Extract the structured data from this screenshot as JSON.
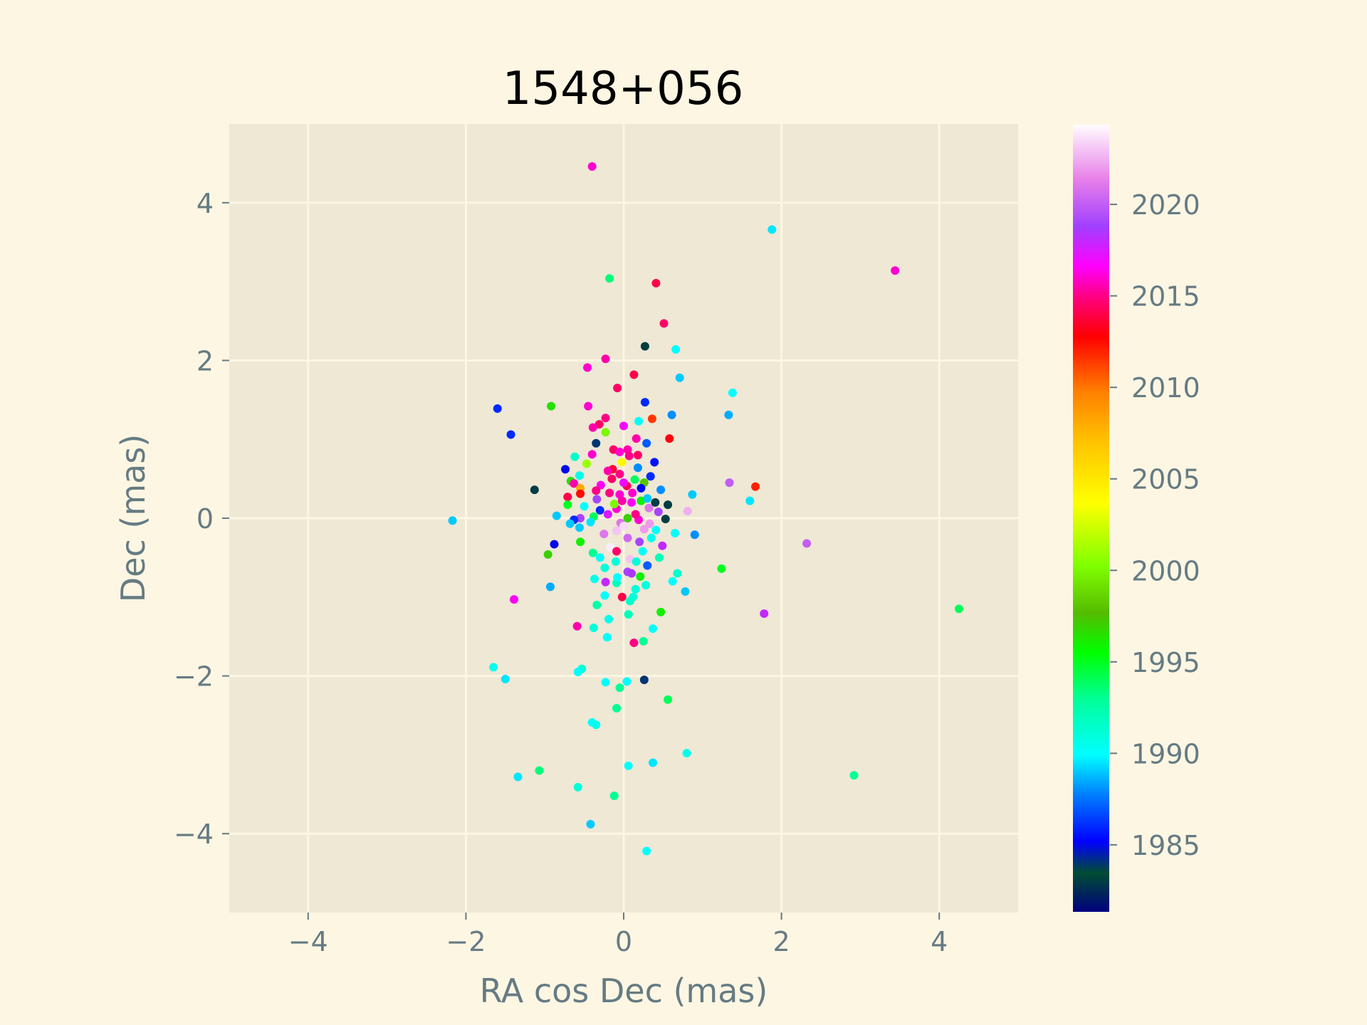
{
  "chart_data": {
    "type": "scatter",
    "title": "1548+056",
    "xlabel": "RA cos Dec (mas)",
    "ylabel": "Dec (mas)",
    "xlim": [
      -5,
      5
    ],
    "ylim": [
      -5,
      5
    ],
    "xticks": [
      -4,
      -2,
      0,
      2,
      4
    ],
    "yticks": [
      -4,
      -2,
      0,
      2,
      4
    ],
    "xtick_labels": [
      "−4",
      "−2",
      "0",
      "2",
      "4"
    ],
    "ytick_labels": [
      "−4",
      "−2",
      "0",
      "2",
      "4"
    ],
    "grid": true,
    "colormap": "gist_ncar",
    "colorbar": {
      "range": [
        1981.3,
        2024.4
      ],
      "ticks": [
        1985,
        1990,
        1995,
        2000,
        2005,
        2010,
        2015,
        2020
      ],
      "tick_labels": [
        "1985",
        "1990",
        "1995",
        "2000",
        "2005",
        "2010",
        "2015",
        "2020"
      ]
    },
    "colors": {
      "figure_bg": "#fdf6e3",
      "axes_bg": "#eee8d5",
      "grid": "#fdf6e3",
      "tick_text": "#657b83"
    },
    "points": [
      {
        "x": -0.4,
        "y": 4.46,
        "t": 2016
      },
      {
        "x": 1.88,
        "y": 3.66,
        "t": 1989.5
      },
      {
        "x": 3.44,
        "y": 3.14,
        "t": 2016
      },
      {
        "x": -0.18,
        "y": 3.04,
        "t": 1993.5
      },
      {
        "x": 0.41,
        "y": 2.98,
        "t": 2014
      },
      {
        "x": 0.51,
        "y": 2.47,
        "t": 2014.5
      },
      {
        "x": 0.27,
        "y": 2.18,
        "t": 1983
      },
      {
        "x": 0.66,
        "y": 2.14,
        "t": 1990
      },
      {
        "x": -0.23,
        "y": 2.02,
        "t": 2015.5
      },
      {
        "x": -0.46,
        "y": 1.91,
        "t": 2016
      },
      {
        "x": 0.13,
        "y": 1.82,
        "t": 2014
      },
      {
        "x": 0.71,
        "y": 1.78,
        "t": 1989
      },
      {
        "x": -0.08,
        "y": 1.65,
        "t": 2014.5
      },
      {
        "x": 1.38,
        "y": 1.59,
        "t": 1990
      },
      {
        "x": 0.27,
        "y": 1.47,
        "t": 1986
      },
      {
        "x": -0.92,
        "y": 1.42,
        "t": 1996.5
      },
      {
        "x": -0.45,
        "y": 1.42,
        "t": 2016
      },
      {
        "x": -1.6,
        "y": 1.39,
        "t": 1986
      },
      {
        "x": 0.61,
        "y": 1.31,
        "t": 1988
      },
      {
        "x": 1.33,
        "y": 1.31,
        "t": 1988.5
      },
      {
        "x": -0.23,
        "y": 1.27,
        "t": 2015
      },
      {
        "x": 0.36,
        "y": 1.26,
        "t": 2011.5
      },
      {
        "x": 0.19,
        "y": 1.23,
        "t": 1990
      },
      {
        "x": -0.31,
        "y": 1.19,
        "t": 2014.5
      },
      {
        "x": -0.39,
        "y": 1.15,
        "t": 2015.5
      },
      {
        "x": 0.0,
        "y": 1.17,
        "t": 2017
      },
      {
        "x": -0.23,
        "y": 1.09,
        "t": 2000
      },
      {
        "x": -1.43,
        "y": 1.06,
        "t": 1986
      },
      {
        "x": 0.58,
        "y": 1.01,
        "t": 2013
      },
      {
        "x": 0.16,
        "y": 1.01,
        "t": 2015.5
      },
      {
        "x": -0.35,
        "y": 0.95,
        "t": 1984
      },
      {
        "x": 0.29,
        "y": 0.95,
        "t": 1987
      },
      {
        "x": -0.13,
        "y": 0.87,
        "t": 2014.5
      },
      {
        "x": 0.05,
        "y": 0.87,
        "t": 2015.5
      },
      {
        "x": -0.05,
        "y": 0.84,
        "t": 2016
      },
      {
        "x": -0.4,
        "y": 0.81,
        "t": 2016
      },
      {
        "x": 0.07,
        "y": 0.79,
        "t": 2015
      },
      {
        "x": -0.62,
        "y": 0.78,
        "t": 1991.5
      },
      {
        "x": 0.39,
        "y": 0.71,
        "t": 1985.5
      },
      {
        "x": -0.02,
        "y": 0.71,
        "t": 2004
      },
      {
        "x": -0.47,
        "y": 0.69,
        "t": 2001
      },
      {
        "x": 0.18,
        "y": 0.64,
        "t": 1988
      },
      {
        "x": -0.14,
        "y": 0.62,
        "t": 2013.5
      },
      {
        "x": -0.74,
        "y": 0.62,
        "t": 1985
      },
      {
        "x": -0.05,
        "y": 0.56,
        "t": 2015
      },
      {
        "x": 0.34,
        "y": 0.53,
        "t": 1986
      },
      {
        "x": -0.56,
        "y": 0.54,
        "t": 1990.5
      },
      {
        "x": 0.14,
        "y": 0.49,
        "t": 1994
      },
      {
        "x": -0.67,
        "y": 0.47,
        "t": 1996.5
      },
      {
        "x": 0.26,
        "y": 0.45,
        "t": 1998
      },
      {
        "x": -0.63,
        "y": 0.44,
        "t": 2015.5
      },
      {
        "x": 1.34,
        "y": 0.45,
        "t": 2020
      },
      {
        "x": -0.29,
        "y": 0.42,
        "t": 2016.5
      },
      {
        "x": 0.04,
        "y": 0.41,
        "t": 2014
      },
      {
        "x": -0.55,
        "y": 0.38,
        "t": 2008
      },
      {
        "x": 1.67,
        "y": 0.4,
        "t": 2012
      },
      {
        "x": -1.13,
        "y": 0.36,
        "t": 1983
      },
      {
        "x": 0.47,
        "y": 0.36,
        "t": 1988
      },
      {
        "x": -0.18,
        "y": 0.32,
        "t": 2015
      },
      {
        "x": 0.11,
        "y": 0.32,
        "t": 2016
      },
      {
        "x": -0.55,
        "y": 0.31,
        "t": 2012.5
      },
      {
        "x": -0.71,
        "y": 0.27,
        "t": 2014
      },
      {
        "x": 0.87,
        "y": 0.3,
        "t": 1989
      },
      {
        "x": -0.34,
        "y": 0.24,
        "t": 2019
      },
      {
        "x": 0.22,
        "y": 0.22,
        "t": 1996
      },
      {
        "x": -0.02,
        "y": 0.22,
        "t": 2015.5
      },
      {
        "x": 1.6,
        "y": 0.22,
        "t": 1989.5
      },
      {
        "x": -0.71,
        "y": 0.17,
        "t": 1995
      },
      {
        "x": 0.56,
        "y": 0.17,
        "t": 1983
      },
      {
        "x": -0.5,
        "y": 0.15,
        "t": 1990
      },
      {
        "x": 0.32,
        "y": 0.13,
        "t": 2021
      },
      {
        "x": -0.09,
        "y": 0.12,
        "t": 2016
      },
      {
        "x": 0.81,
        "y": 0.09,
        "t": 2022.5
      },
      {
        "x": 0.44,
        "y": 0.08,
        "t": 2019
      },
      {
        "x": -0.85,
        "y": 0.03,
        "t": 1989
      },
      {
        "x": -0.38,
        "y": 0.02,
        "t": 1994
      },
      {
        "x": 0.53,
        "y": -0.01,
        "t": 1983
      },
      {
        "x": -0.55,
        "y": 0.0,
        "t": 2019
      },
      {
        "x": -0.63,
        "y": -0.02,
        "t": 1986
      },
      {
        "x": 0.19,
        "y": -0.02,
        "t": 2016
      },
      {
        "x": -2.17,
        "y": -0.03,
        "t": 1989
      },
      {
        "x": -0.68,
        "y": -0.07,
        "t": 1989
      },
      {
        "x": -0.04,
        "y": -0.06,
        "t": 2021
      },
      {
        "x": 0.33,
        "y": -0.07,
        "t": 2022
      },
      {
        "x": -0.56,
        "y": -0.12,
        "t": 1989
      },
      {
        "x": 0.26,
        "y": -0.14,
        "t": 2022
      },
      {
        "x": -0.09,
        "y": -0.16,
        "t": 2023
      },
      {
        "x": 0.41,
        "y": -0.15,
        "t": 1990
      },
      {
        "x": 0.9,
        "y": -0.21,
        "t": 1988
      },
      {
        "x": 0.65,
        "y": -0.19,
        "t": 1990
      },
      {
        "x": 2.32,
        "y": -0.32,
        "t": 2020
      },
      {
        "x": 0.49,
        "y": -0.35,
        "t": 2018
      },
      {
        "x": -0.88,
        "y": -0.33,
        "t": 1985
      },
      {
        "x": -0.17,
        "y": -0.37,
        "t": 2024
      },
      {
        "x": -0.09,
        "y": -0.42,
        "t": 2014.5
      },
      {
        "x": 0.24,
        "y": -0.42,
        "t": 1990
      },
      {
        "x": -0.96,
        "y": -0.46,
        "t": 1997
      },
      {
        "x": -0.39,
        "y": -0.44,
        "t": 1993
      },
      {
        "x": 0.08,
        "y": -0.52,
        "t": 2023
      },
      {
        "x": 0.16,
        "y": -0.55,
        "t": 1991
      },
      {
        "x": 0.3,
        "y": -0.6,
        "t": 1987
      },
      {
        "x": -0.24,
        "y": -0.63,
        "t": 1991
      },
      {
        "x": 0.05,
        "y": -0.68,
        "t": 2019
      },
      {
        "x": 1.24,
        "y": -0.64,
        "t": 1995
      },
      {
        "x": 0.68,
        "y": -0.7,
        "t": 1991.5
      },
      {
        "x": -0.37,
        "y": -0.77,
        "t": 1990.5
      },
      {
        "x": 0.21,
        "y": -0.74,
        "t": 1996
      },
      {
        "x": -0.09,
        "y": -0.82,
        "t": 1992
      },
      {
        "x": -0.23,
        "y": -0.81,
        "t": 2018
      },
      {
        "x": -0.93,
        "y": -0.87,
        "t": 1988.5
      },
      {
        "x": 0.62,
        "y": -0.8,
        "t": 1990
      },
      {
        "x": 0.15,
        "y": -0.9,
        "t": 1991
      },
      {
        "x": 0.78,
        "y": -0.93,
        "t": 1989
      },
      {
        "x": -0.24,
        "y": -0.98,
        "t": 1990
      },
      {
        "x": -0.02,
        "y": -1.0,
        "t": 2014
      },
      {
        "x": 0.12,
        "y": -1.0,
        "t": 1991
      },
      {
        "x": -1.39,
        "y": -1.03,
        "t": 2016.5
      },
      {
        "x": -0.34,
        "y": -1.1,
        "t": 1992.5
      },
      {
        "x": 0.47,
        "y": -1.19,
        "t": 1996
      },
      {
        "x": 1.78,
        "y": -1.21,
        "t": 2018
      },
      {
        "x": 4.25,
        "y": -1.15,
        "t": 1994
      },
      {
        "x": 0.06,
        "y": -1.22,
        "t": 1992
      },
      {
        "x": -0.19,
        "y": -1.28,
        "t": 1990.5
      },
      {
        "x": -0.38,
        "y": -1.39,
        "t": 1991
      },
      {
        "x": -0.59,
        "y": -1.37,
        "t": 2015.5
      },
      {
        "x": 0.37,
        "y": -1.4,
        "t": 1990
      },
      {
        "x": -0.21,
        "y": -1.51,
        "t": 1990
      },
      {
        "x": 0.13,
        "y": -1.58,
        "t": 2015
      },
      {
        "x": 0.25,
        "y": -1.56,
        "t": 1993
      },
      {
        "x": -1.65,
        "y": -1.89,
        "t": 1990.5
      },
      {
        "x": -0.53,
        "y": -1.91,
        "t": 1991
      },
      {
        "x": -0.58,
        "y": -1.95,
        "t": 1990
      },
      {
        "x": -1.5,
        "y": -2.04,
        "t": 1989.5
      },
      {
        "x": 0.26,
        "y": -2.05,
        "t": 1984
      },
      {
        "x": 0.04,
        "y": -2.07,
        "t": 1990
      },
      {
        "x": -0.23,
        "y": -2.08,
        "t": 1990
      },
      {
        "x": -0.05,
        "y": -2.15,
        "t": 1993
      },
      {
        "x": 0.56,
        "y": -2.3,
        "t": 1994
      },
      {
        "x": -0.09,
        "y": -2.41,
        "t": 1993
      },
      {
        "x": -0.4,
        "y": -2.59,
        "t": 1990
      },
      {
        "x": -0.35,
        "y": -2.62,
        "t": 1990.5
      },
      {
        "x": 0.8,
        "y": -2.98,
        "t": 1990.5
      },
      {
        "x": 0.37,
        "y": -3.1,
        "t": 1989.5
      },
      {
        "x": 0.06,
        "y": -3.14,
        "t": 1990
      },
      {
        "x": -1.07,
        "y": -3.2,
        "t": 1993.5
      },
      {
        "x": 2.92,
        "y": -3.26,
        "t": 1993
      },
      {
        "x": -1.34,
        "y": -3.28,
        "t": 1989.5
      },
      {
        "x": -0.58,
        "y": -3.41,
        "t": 1991
      },
      {
        "x": -0.12,
        "y": -3.52,
        "t": 1993
      },
      {
        "x": -0.42,
        "y": -3.88,
        "t": 1989
      },
      {
        "x": 0.29,
        "y": -4.22,
        "t": 1990
      },
      {
        "x": 0.0,
        "y": 0.45,
        "t": 2017
      },
      {
        "x": 0.1,
        "y": 0.2,
        "t": 2016.5
      },
      {
        "x": -0.2,
        "y": 0.05,
        "t": 2017.5
      },
      {
        "x": 0.05,
        "y": -0.25,
        "t": 2020.5
      },
      {
        "x": -0.15,
        "y": 0.5,
        "t": 2014.5
      },
      {
        "x": 0.15,
        "y": 0.05,
        "t": 2015
      },
      {
        "x": -0.05,
        "y": 0.3,
        "t": 2016
      },
      {
        "x": -0.25,
        "y": -0.2,
        "t": 2021
      },
      {
        "x": 0.2,
        "y": -0.3,
        "t": 2019
      },
      {
        "x": 0.3,
        "y": 0.25,
        "t": 1989
      },
      {
        "x": -0.3,
        "y": 0.1,
        "t": 1986
      },
      {
        "x": 0.4,
        "y": 0.2,
        "t": 1983
      },
      {
        "x": 0.05,
        "y": 0.0,
        "t": 1997
      },
      {
        "x": -0.1,
        "y": -0.55,
        "t": 1991
      },
      {
        "x": 0.1,
        "y": -0.7,
        "t": 2018.5
      },
      {
        "x": -0.3,
        "y": -0.5,
        "t": 1990
      },
      {
        "x": 0.28,
        "y": -0.85,
        "t": 1991
      },
      {
        "x": -0.12,
        "y": 0.18,
        "t": 2000
      },
      {
        "x": 0.22,
        "y": 0.38,
        "t": 1985
      },
      {
        "x": -0.35,
        "y": 0.35,
        "t": 2015
      },
      {
        "x": 0.0,
        "y": -0.1,
        "t": 2023.5
      },
      {
        "x": -0.2,
        "y": 0.6,
        "t": 2015.5
      },
      {
        "x": 0.18,
        "y": 0.8,
        "t": 2014.5
      },
      {
        "x": -0.42,
        "y": -0.05,
        "t": 1989.5
      },
      {
        "x": 0.35,
        "y": -0.25,
        "t": 1990.5
      },
      {
        "x": -0.08,
        "y": -0.75,
        "t": 1990
      },
      {
        "x": 0.08,
        "y": -1.05,
        "t": 1991.5
      },
      {
        "x": 0.45,
        "y": -0.5,
        "t": 1992
      },
      {
        "x": -0.55,
        "y": -0.3,
        "t": 1996
      }
    ]
  }
}
